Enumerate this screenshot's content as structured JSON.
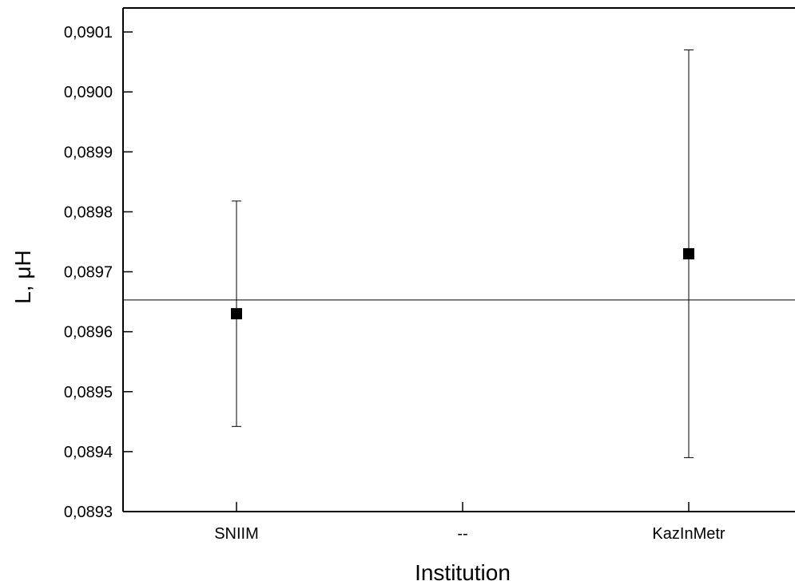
{
  "chart_data": {
    "type": "scatter",
    "xlabel": "Institution",
    "ylabel": "L, μH",
    "categories": [
      "SNIIM",
      "--",
      "KazInMetr"
    ],
    "ylim": [
      0.0893,
      0.09014
    ],
    "yticks": [
      0.0893,
      0.0894,
      0.0895,
      0.0896,
      0.0897,
      0.0898,
      0.0899,
      0.09,
      0.0901
    ],
    "ytick_labels": [
      "0,0893",
      "0,0894",
      "0,0895",
      "0,0896",
      "0,0897",
      "0,0898",
      "0,0899",
      "0,0900",
      "0,0901"
    ],
    "series": [
      {
        "points": [
          {
            "category": "SNIIM",
            "y": 0.08963,
            "err_low": 0.089442,
            "err_high": 0.089818
          },
          {
            "category": "KazInMetr",
            "y": 0.08973,
            "err_low": 0.08939,
            "err_high": 0.09007
          }
        ]
      }
    ],
    "reference_line": 0.089653,
    "grid": false,
    "legend": "none",
    "colors": {
      "marker": "#000000",
      "line": "#000000",
      "axis": "#000000"
    }
  }
}
